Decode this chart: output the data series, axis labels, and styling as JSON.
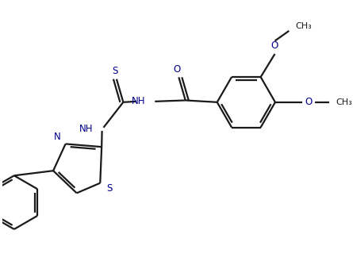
{
  "background_color": "#ffffff",
  "bond_color": "#1a1a1a",
  "heteroatom_color": "#00008B",
  "line_width": 1.6,
  "figsize": [
    4.45,
    3.29
  ],
  "dpi": 100,
  "xlim": [
    0,
    8.9
  ],
  "ylim": [
    0,
    6.58
  ]
}
